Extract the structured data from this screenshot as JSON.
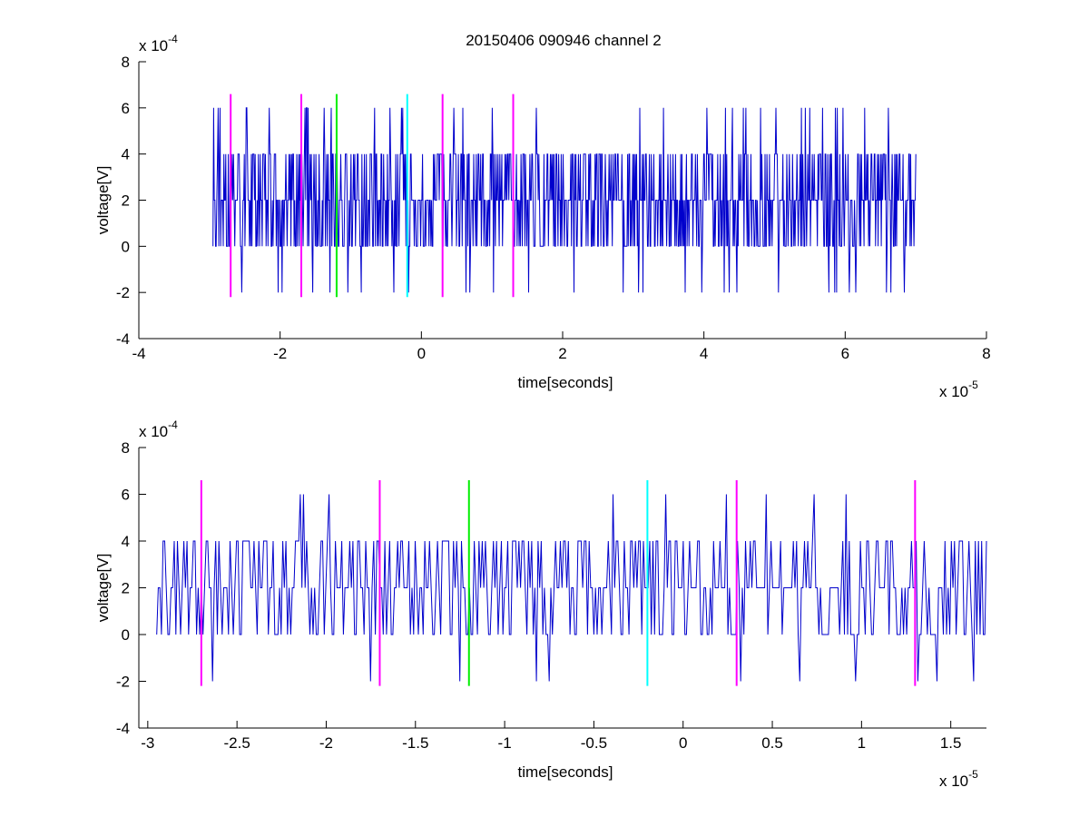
{
  "chart_data": [
    {
      "type": "line",
      "title": "20150406 090946 channel 2",
      "xlabel": "time[seconds]",
      "ylabel": "voltage[V]",
      "xlim": [
        -4e-05,
        8e-05
      ],
      "ylim": [
        -0.0004,
        0.0008
      ],
      "x_ticks": [
        -4e-05,
        -2e-05,
        0,
        2e-05,
        4e-05,
        6e-05,
        8e-05
      ],
      "x_tick_labels": [
        "-4",
        "-2",
        "0",
        "2",
        "4",
        "6",
        "8"
      ],
      "y_ticks": [
        -0.0004,
        -0.0002,
        0,
        0.0002,
        0.0004,
        0.0006,
        0.0008
      ],
      "y_tick_labels": [
        "-4",
        "-2",
        "0",
        "2",
        "4",
        "6",
        "8"
      ],
      "x_multiplier": {
        "base": "x 10",
        "exp": "-5"
      },
      "y_multiplier": {
        "base": "x 10",
        "exp": "-4"
      },
      "grid": false,
      "signal": {
        "color": "#0000cc",
        "x_start": -2.95e-05,
        "x_end": 7e-05,
        "levels": [
          -0.0002,
          0,
          0.0002,
          0.0004,
          0.0006
        ],
        "seed": 20150406
      },
      "markers": [
        {
          "x": -2.7e-05,
          "color": "#ff00ff",
          "y_range": [
            -0.00022,
            0.00066
          ]
        },
        {
          "x": -1.7e-05,
          "color": "#ff00ff",
          "y_range": [
            -0.00022,
            0.00066
          ]
        },
        {
          "x": -1.2e-05,
          "color": "#00ee00",
          "y_range": [
            -0.00022,
            0.00066
          ]
        },
        {
          "x": -2e-06,
          "color": "#00ffff",
          "y_range": [
            -0.00022,
            0.00066
          ]
        },
        {
          "x": 3e-06,
          "color": "#ff00ff",
          "y_range": [
            -0.00022,
            0.00066
          ]
        },
        {
          "x": 1.3e-05,
          "color": "#ff00ff",
          "y_range": [
            -0.00022,
            0.00066
          ]
        }
      ]
    },
    {
      "type": "line",
      "title": "",
      "xlabel": "time[seconds]",
      "ylabel": "voltage[V]",
      "xlim": [
        -3.05e-05,
        1.7e-05
      ],
      "ylim": [
        -0.0004,
        0.0008
      ],
      "x_ticks": [
        -3e-05,
        -2.5e-05,
        -2e-05,
        -1.5e-05,
        -1e-05,
        -5e-06,
        0,
        5e-06,
        1e-05,
        1.5e-05
      ],
      "x_tick_labels": [
        "-3",
        "-2.5",
        "-2",
        "-1.5",
        "-1",
        "-0.5",
        "0",
        "0.5",
        "1",
        "1.5"
      ],
      "y_ticks": [
        -0.0004,
        -0.0002,
        0,
        0.0002,
        0.0004,
        0.0006,
        0.0008
      ],
      "y_tick_labels": [
        "-4",
        "-2",
        "0",
        "2",
        "4",
        "6",
        "8"
      ],
      "x_multiplier": {
        "base": "x 10",
        "exp": "-5"
      },
      "y_multiplier": {
        "base": "x 10",
        "exp": "-4"
      },
      "grid": false,
      "signal": {
        "color": "#0000cc",
        "x_start": -2.95e-05,
        "x_end": 1.7e-05,
        "levels": [
          -0.0002,
          0,
          0.0002,
          0.0004,
          0.0006
        ],
        "seed": 90946
      },
      "markers": [
        {
          "x": -2.7e-05,
          "color": "#ff00ff",
          "y_range": [
            -0.00022,
            0.00066
          ]
        },
        {
          "x": -1.7e-05,
          "color": "#ff00ff",
          "y_range": [
            -0.00022,
            0.00066
          ]
        },
        {
          "x": -1.2e-05,
          "color": "#00ee00",
          "y_range": [
            -0.00022,
            0.00066
          ]
        },
        {
          "x": -2e-06,
          "color": "#00ffff",
          "y_range": [
            -0.00022,
            0.00066
          ]
        },
        {
          "x": 3e-06,
          "color": "#ff00ff",
          "y_range": [
            -0.00022,
            0.00066
          ]
        },
        {
          "x": 1.3e-05,
          "color": "#ff00ff",
          "y_range": [
            -0.00022,
            0.00066
          ]
        }
      ]
    }
  ]
}
